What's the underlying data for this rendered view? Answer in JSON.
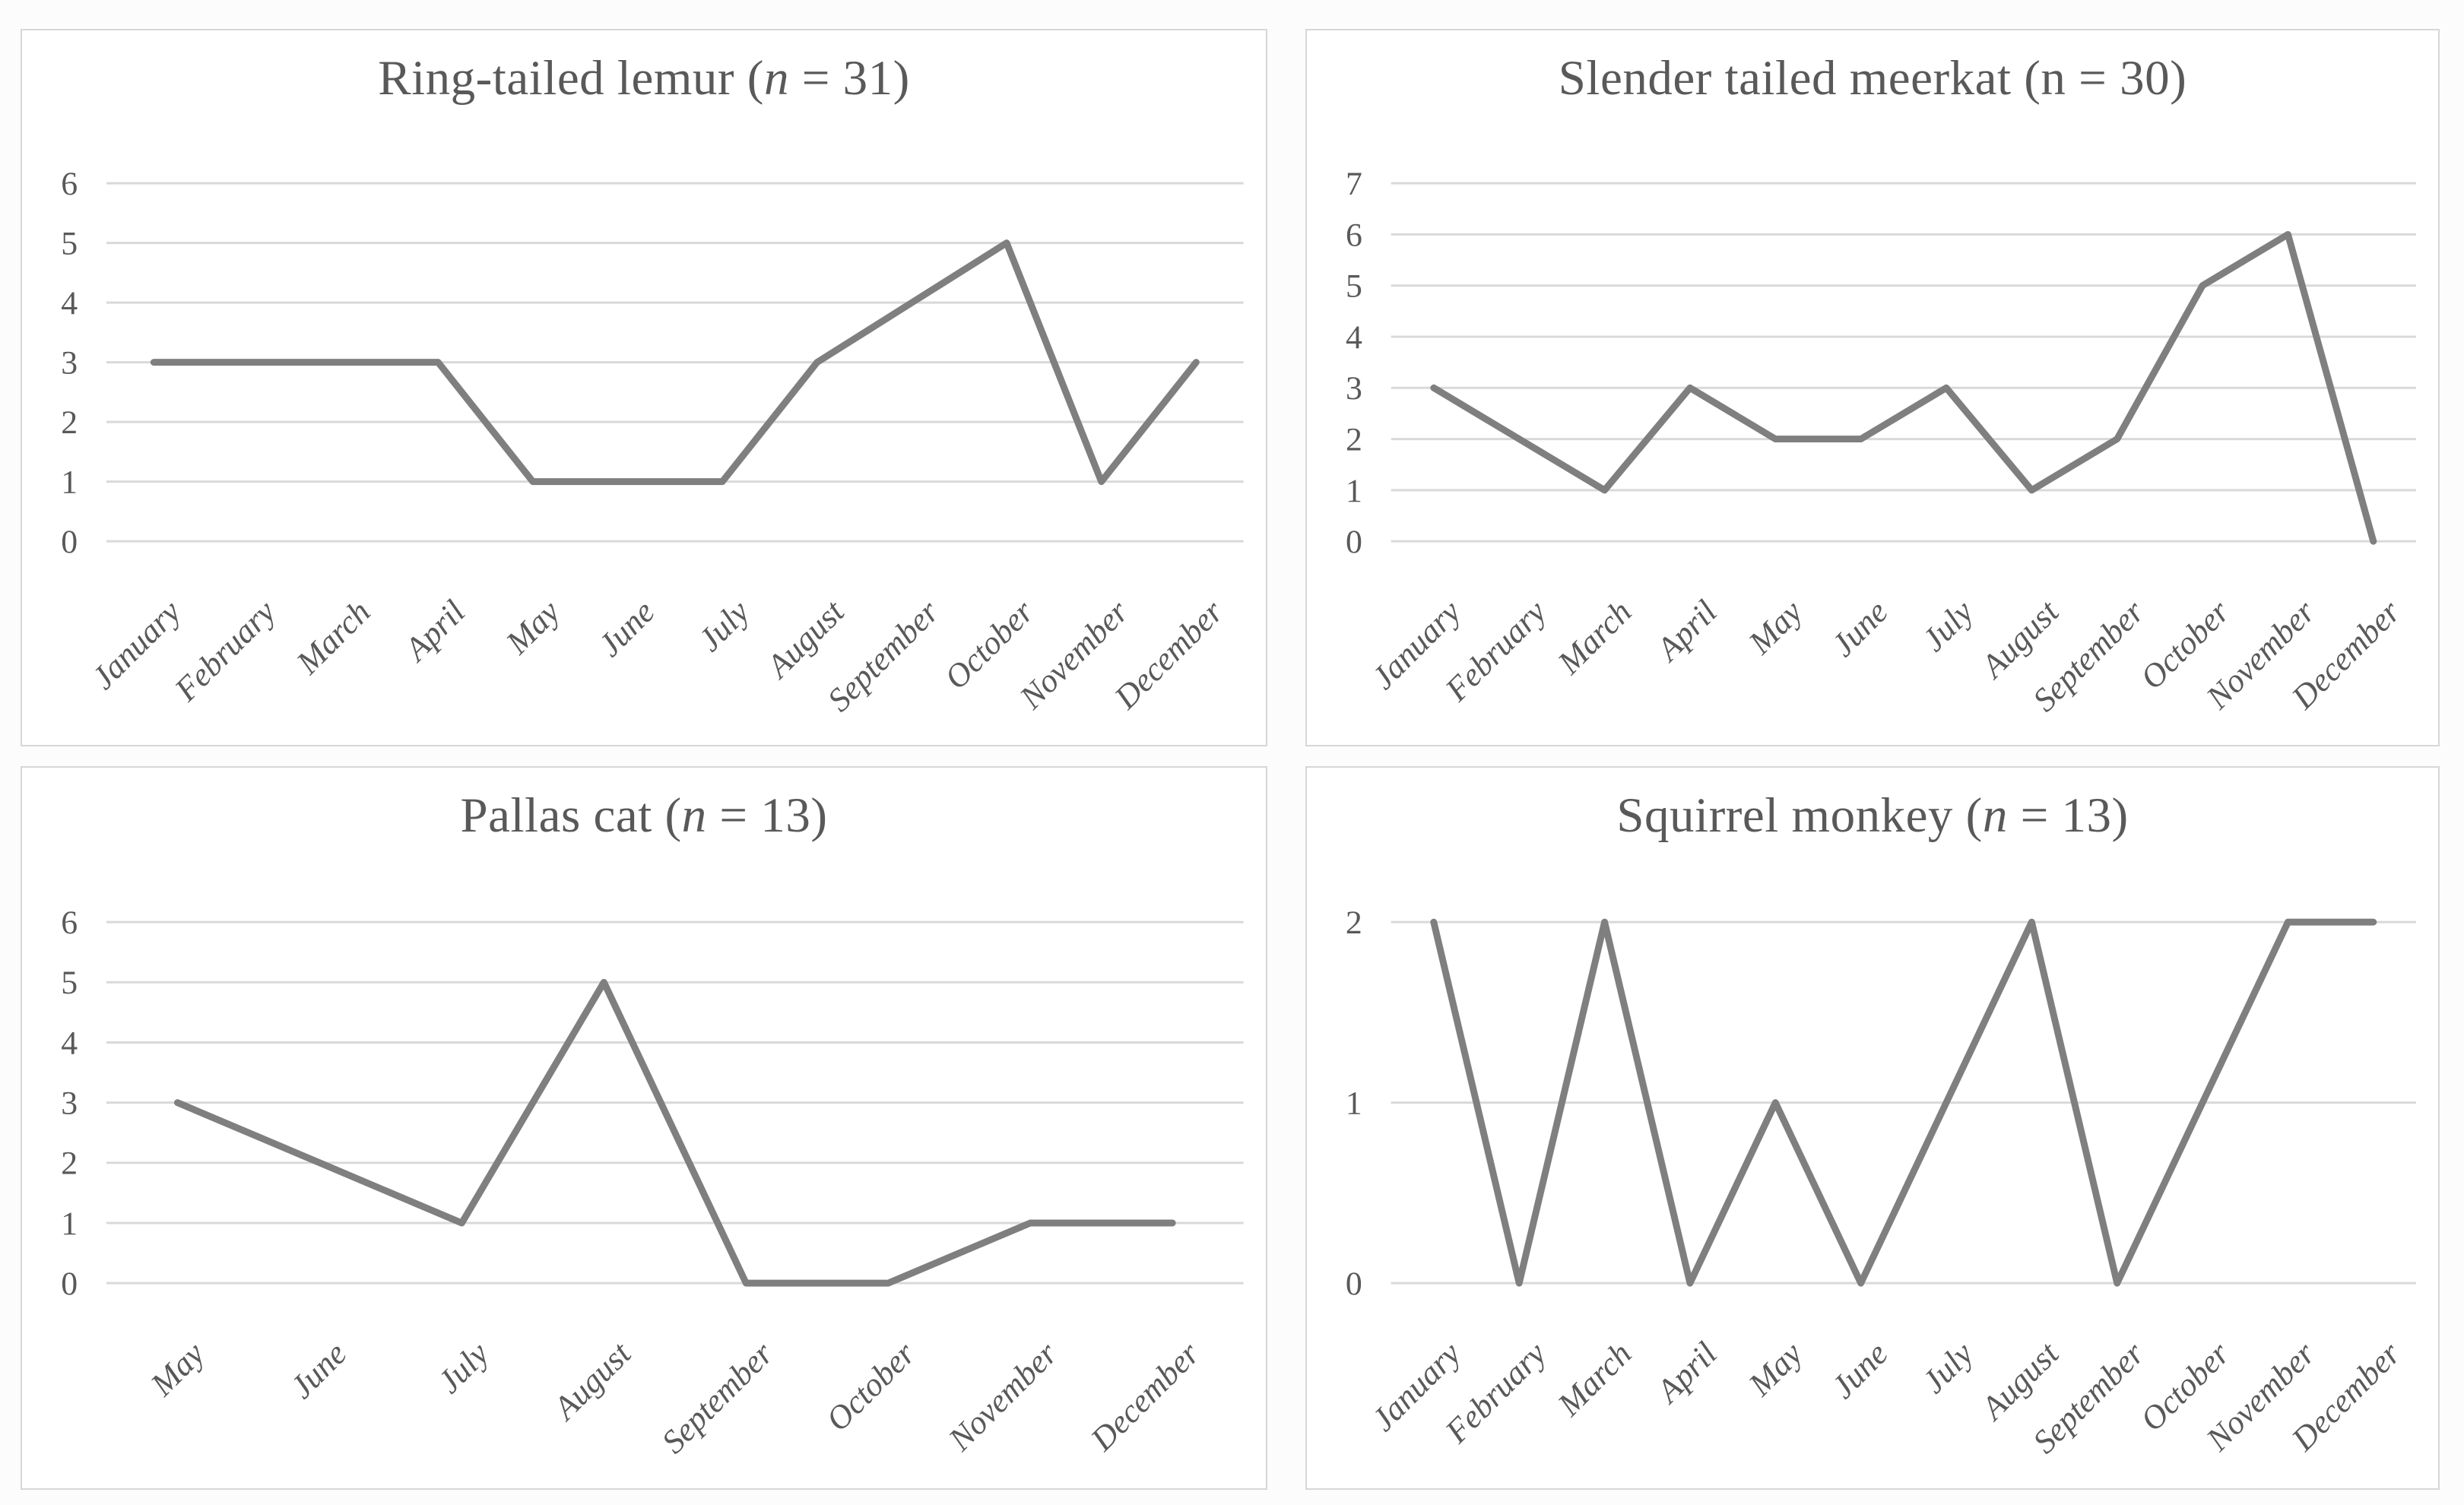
{
  "figure": {
    "description_visible_text_only": true,
    "colors": {
      "line": "#7f7f7f",
      "gridline": "#d9d9d9",
      "text": "#595959",
      "panel_border": "#d7d7d7",
      "panel_background": "#ffffff"
    }
  },
  "chart_data": [
    {
      "type": "line",
      "title_prefix": "Ring-tailed lemur (",
      "title_n": "n",
      "title_suffix": " = 31)",
      "n_italic": true,
      "n": 31,
      "categories": [
        "January",
        "February",
        "March",
        "April",
        "May",
        "June",
        "July",
        "August",
        "September",
        "October",
        "November",
        "December"
      ],
      "values": [
        3,
        3,
        3,
        3,
        1,
        1,
        1,
        3,
        4,
        5,
        1,
        3
      ],
      "ylabel": "",
      "xlabel": "",
      "ylim": [
        0,
        6
      ],
      "ytick_step": 1,
      "grid": "horizontal",
      "legend": "none"
    },
    {
      "type": "line",
      "title_prefix": "Slender tailed meerkat (",
      "title_n": "n",
      "title_suffix": " = 30)",
      "n_italic": false,
      "n": 30,
      "categories": [
        "January",
        "February",
        "March",
        "April",
        "May",
        "June",
        "July",
        "August",
        "September",
        "October",
        "November",
        "December"
      ],
      "values": [
        3,
        2,
        1,
        3,
        2,
        2,
        3,
        1,
        2,
        5,
        6,
        0
      ],
      "ylabel": "",
      "xlabel": "",
      "ylim": [
        0,
        7
      ],
      "ytick_step": 1,
      "grid": "horizontal",
      "legend": "none"
    },
    {
      "type": "line",
      "title_prefix": "Pallas cat (",
      "title_n": "n",
      "title_suffix": " = 13)",
      "n_italic": true,
      "n": 13,
      "categories": [
        "May",
        "June",
        "July",
        "August",
        "September",
        "October",
        "November",
        "December"
      ],
      "values": [
        3,
        2,
        1,
        5,
        0,
        0,
        1,
        1
      ],
      "ylabel": "",
      "xlabel": "",
      "ylim": [
        0,
        6
      ],
      "ytick_step": 1,
      "grid": "horizontal",
      "legend": "none"
    },
    {
      "type": "line",
      "title_prefix": "Squirrel monkey (",
      "title_n": "n",
      "title_suffix": " = 13)",
      "n_italic": true,
      "n": 13,
      "categories": [
        "January",
        "February",
        "March",
        "April",
        "May",
        "June",
        "July",
        "August",
        "September",
        "October",
        "November",
        "December"
      ],
      "values": [
        2,
        0,
        2,
        0,
        1,
        0,
        1,
        2,
        0,
        1,
        2,
        2
      ],
      "ylabel": "",
      "xlabel": "",
      "ylim": [
        0,
        2
      ],
      "ytick_step": 1,
      "grid": "horizontal",
      "legend": "none"
    }
  ]
}
